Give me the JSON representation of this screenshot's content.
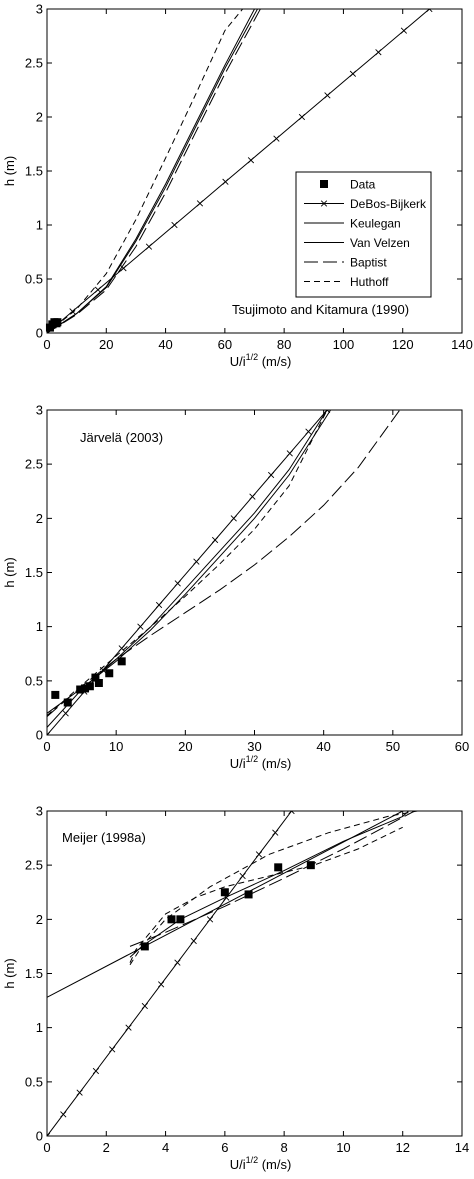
{
  "chart_data": [
    {
      "type": "line",
      "xlabel_main": "U/i",
      "xlabel_sup": "1/2",
      "xlabel_unit": " (m/s)",
      "ylabel": "h (m)",
      "xlim": [
        0,
        140
      ],
      "ylim": [
        0,
        3
      ],
      "xticks": [
        0,
        20,
        40,
        60,
        80,
        100,
        120,
        140
      ],
      "yticks": [
        0,
        0.5,
        1,
        1.5,
        2,
        2.5,
        3
      ],
      "xtick_labels": [
        "0",
        "20",
        "40",
        "60",
        "80",
        "100",
        "120",
        "140"
      ],
      "ytick_labels": [
        "0",
        "0.5",
        "1",
        "1.5",
        "2",
        "2.5",
        "3"
      ],
      "annotation": "Tsujimoto and Kitamura (1990)",
      "legend": {
        "placement": "right",
        "entries": [
          "Data",
          "DeBos-Bijkerk",
          "Keulegan",
          "Van Velzen",
          "Baptist",
          "Huthoff"
        ]
      },
      "data_points": [
        [
          1,
          0.05
        ],
        [
          1.8,
          0.08
        ],
        [
          2.5,
          0.1
        ],
        [
          3.2,
          0.09
        ],
        [
          3.5,
          0.1
        ]
      ],
      "series": [
        {
          "style": "cross",
          "x": [
            0,
            8.6,
            17.2,
            25.8,
            34.4,
            43.0,
            51.6,
            60.2,
            68.8,
            77.4,
            86.0,
            94.6,
            103.2,
            111.8,
            120.4,
            129
          ],
          "y": [
            0,
            0.2,
            0.4,
            0.6,
            0.8,
            1.0,
            1.2,
            1.4,
            1.6,
            1.8,
            2.0,
            2.2,
            2.4,
            2.6,
            2.8,
            3.0
          ]
        },
        {
          "style": "solid",
          "x": [
            0,
            10,
            20,
            30,
            40,
            50,
            60,
            71
          ],
          "y": [
            0,
            0.18,
            0.42,
            0.85,
            1.35,
            1.9,
            2.45,
            3.0
          ]
        },
        {
          "style": "solid",
          "x": [
            0,
            10,
            20,
            30,
            40,
            50,
            60,
            70
          ],
          "y": [
            0,
            0.18,
            0.43,
            0.87,
            1.38,
            1.93,
            2.48,
            3.0
          ]
        },
        {
          "style": "longdash",
          "x": [
            0,
            10,
            20,
            30,
            40,
            50,
            60,
            72
          ],
          "y": [
            0,
            0.17,
            0.4,
            0.8,
            1.3,
            1.85,
            2.4,
            3.0
          ]
        },
        {
          "style": "dash",
          "x": [
            0,
            10,
            20,
            30,
            40,
            50,
            60,
            66
          ],
          "y": [
            0,
            0.22,
            0.55,
            1.05,
            1.62,
            2.2,
            2.8,
            3.0
          ]
        }
      ]
    },
    {
      "type": "line",
      "xlabel_main": "U/i",
      "xlabel_sup": "1/2",
      "xlabel_unit": " (m/s)",
      "ylabel": "h (m)",
      "xlim": [
        0,
        60
      ],
      "ylim": [
        0,
        3
      ],
      "xticks": [
        0,
        10,
        20,
        30,
        40,
        50,
        60
      ],
      "yticks": [
        0,
        0.5,
        1,
        1.5,
        2,
        2.5,
        3
      ],
      "xtick_labels": [
        "0",
        "10",
        "20",
        "30",
        "40",
        "50",
        "60"
      ],
      "ytick_labels": [
        "0",
        "0.5",
        "1",
        "1.5",
        "2",
        "2.5",
        "3"
      ],
      "annotation": "Järvelä (2003)",
      "data_points": [
        [
          1.2,
          0.37
        ],
        [
          3,
          0.3
        ],
        [
          4.8,
          0.42
        ],
        [
          5.5,
          0.43
        ],
        [
          6.2,
          0.45
        ],
        [
          7,
          0.53
        ],
        [
          7.5,
          0.48
        ],
        [
          9,
          0.57
        ],
        [
          10.8,
          0.68
        ]
      ],
      "series": [
        {
          "style": "cross",
          "x": [
            0,
            2.7,
            5.4,
            8.1,
            10.8,
            13.5,
            16.2,
            18.9,
            21.6,
            24.3,
            27.0,
            29.7,
            32.4,
            35.1,
            37.8,
            40.5
          ],
          "y": [
            0,
            0.2,
            0.4,
            0.6,
            0.8,
            1.0,
            1.2,
            1.4,
            1.6,
            1.8,
            2.0,
            2.2,
            2.4,
            2.6,
            2.8,
            3.0
          ]
        },
        {
          "style": "solid",
          "x": [
            0,
            5,
            10,
            15,
            20,
            25,
            30,
            35,
            40.5
          ],
          "y": [
            0.07,
            0.42,
            0.7,
            1.0,
            1.35,
            1.7,
            2.05,
            2.45,
            3.0
          ]
        },
        {
          "style": "solid",
          "x": [
            0,
            5,
            10,
            15,
            20,
            25,
            30,
            35,
            41
          ],
          "y": [
            0.2,
            0.43,
            0.68,
            0.97,
            1.3,
            1.65,
            2.0,
            2.4,
            3.0
          ]
        },
        {
          "style": "longdash",
          "x": [
            0,
            5,
            10,
            15,
            20,
            25,
            30,
            35,
            40,
            45,
            51
          ],
          "y": [
            0.17,
            0.45,
            0.7,
            0.92,
            1.13,
            1.34,
            1.57,
            1.83,
            2.12,
            2.47,
            3.0
          ]
        },
        {
          "style": "dash",
          "x": [
            0,
            5,
            10,
            15,
            20,
            25,
            30,
            35,
            40.5
          ],
          "y": [
            0.18,
            0.46,
            0.73,
            1.0,
            1.28,
            1.58,
            1.9,
            2.3,
            3.0
          ]
        }
      ]
    },
    {
      "type": "line",
      "xlabel_main": "U/i",
      "xlabel_sup": "1/2",
      "xlabel_unit": " (m/s)",
      "ylabel": "h (m)",
      "xlim": [
        0,
        14
      ],
      "ylim": [
        0,
        3
      ],
      "xticks": [
        0,
        2,
        4,
        6,
        8,
        10,
        12,
        14
      ],
      "yticks": [
        0,
        0.5,
        1,
        1.5,
        2,
        2.5,
        3
      ],
      "xtick_labels": [
        "0",
        "2",
        "4",
        "6",
        "8",
        "10",
        "12",
        "14"
      ],
      "ytick_labels": [
        "0",
        "0.5",
        "1",
        "1.5",
        "2",
        "2.5",
        "3"
      ],
      "annotation": "Meijer (1998a)",
      "data_points": [
        [
          3.3,
          1.75
        ],
        [
          4.2,
          2.0
        ],
        [
          4.5,
          2.0
        ],
        [
          6.0,
          2.25
        ],
        [
          6.8,
          2.23
        ],
        [
          7.8,
          2.48
        ],
        [
          8.9,
          2.5
        ]
      ],
      "series": [
        {
          "style": "cross",
          "x": [
            0,
            0.55,
            1.1,
            1.65,
            2.2,
            2.75,
            3.3,
            3.85,
            4.4,
            4.95,
            5.5,
            6.05,
            6.6,
            7.15,
            7.7,
            8.25
          ],
          "y": [
            0,
            0.2,
            0.4,
            0.6,
            0.8,
            1.0,
            1.2,
            1.4,
            1.6,
            1.8,
            2.0,
            2.2,
            2.4,
            2.6,
            2.8,
            3.0
          ]
        },
        {
          "style": "solid",
          "x": [
            0,
            12
          ],
          "y": [
            1.28,
            3.0
          ]
        },
        {
          "style": "solid",
          "x": [
            2.8,
            3.2,
            4.5,
            6,
            8,
            10,
            12,
            12.2
          ],
          "y": [
            1.65,
            1.75,
            2.0,
            2.2,
            2.45,
            2.72,
            2.95,
            3.0
          ]
        },
        {
          "style": "longdash",
          "x": [
            2.8,
            4,
            6,
            8,
            10,
            12.4
          ],
          "y": [
            1.75,
            1.88,
            2.12,
            2.38,
            2.65,
            3.0
          ]
        },
        {
          "style": "dash",
          "x": [
            2.8,
            3.2,
            4,
            5.5,
            7.5,
            9.5,
            11.5,
            12.5
          ],
          "y": [
            1.58,
            1.75,
            2.0,
            2.3,
            2.6,
            2.8,
            2.95,
            3.0
          ]
        },
        {
          "style": "dash",
          "x": [
            2.8,
            3,
            4,
            5,
            6,
            7.5,
            9,
            10.5,
            12
          ],
          "y": [
            1.6,
            1.72,
            2.05,
            2.2,
            2.3,
            2.4,
            2.5,
            2.65,
            2.85
          ]
        }
      ]
    }
  ]
}
